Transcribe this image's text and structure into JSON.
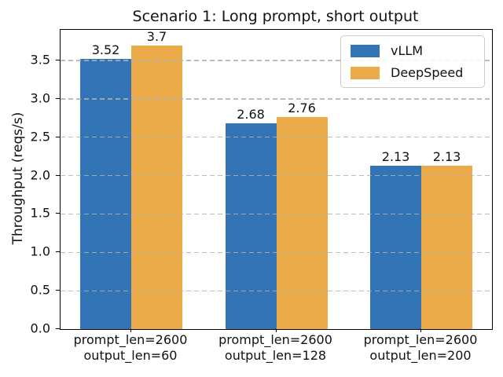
{
  "chart_data": {
    "type": "bar",
    "title": "Scenario 1: Long prompt, short output",
    "xlabel": "",
    "ylabel": "Throughput (reqs/s)",
    "categories": [
      [
        "prompt_len=2600",
        "output_len=60"
      ],
      [
        "prompt_len=2600",
        "output_len=128"
      ],
      [
        "prompt_len=2600",
        "output_len=200"
      ]
    ],
    "series": [
      {
        "name": "vLLM",
        "color": "#3274b5",
        "values": [
          3.52,
          2.68,
          2.13
        ],
        "labels": [
          "3.52",
          "2.68",
          "2.13"
        ]
      },
      {
        "name": "DeepSpeed",
        "color": "#ecab49",
        "values": [
          3.7,
          2.76,
          2.13
        ],
        "labels": [
          "3.7",
          "2.76",
          "2.13"
        ]
      }
    ],
    "ylim": [
      0,
      3.9
    ],
    "yticks": [
      0.0,
      0.5,
      1.0,
      1.5,
      2.0,
      2.5,
      3.0,
      3.5
    ],
    "ytick_labels": [
      "0.0",
      "0.5",
      "1.0",
      "1.5",
      "2.0",
      "2.5",
      "3.0",
      "3.5"
    ],
    "grid": "horizontal-dashed",
    "grid_above_bars": true,
    "legend_position": "upper right",
    "background_color": "#ffffff",
    "frame_color": "#000000",
    "grid_color": "#b0b0b0"
  }
}
